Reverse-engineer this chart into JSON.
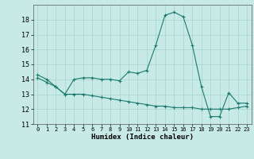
{
  "title": "",
  "xlabel": "Humidex (Indice chaleur)",
  "background_color": "#c8eae6",
  "line_color": "#1a7a6e",
  "grid_color": "#a8d8d0",
  "xlim": [
    -0.5,
    23.5
  ],
  "ylim": [
    11,
    19
  ],
  "yticks": [
    11,
    12,
    13,
    14,
    15,
    16,
    17,
    18
  ],
  "xticks": [
    0,
    1,
    2,
    3,
    4,
    5,
    6,
    7,
    8,
    9,
    10,
    11,
    12,
    13,
    14,
    15,
    16,
    17,
    18,
    19,
    20,
    21,
    22,
    23
  ],
  "line1_x": [
    0,
    1,
    2,
    3,
    4,
    5,
    6,
    7,
    8,
    9,
    10,
    11,
    12,
    13,
    14,
    15,
    16,
    17,
    18,
    19,
    20,
    21,
    22,
    23
  ],
  "line1_y": [
    14.3,
    14.0,
    13.5,
    13.0,
    14.0,
    14.1,
    14.1,
    14.0,
    14.0,
    13.9,
    14.5,
    14.4,
    14.6,
    16.3,
    18.3,
    18.5,
    18.2,
    16.3,
    13.5,
    11.5,
    11.5,
    13.1,
    12.4,
    12.4
  ],
  "line2_x": [
    0,
    1,
    2,
    3,
    4,
    5,
    6,
    7,
    8,
    9,
    10,
    11,
    12,
    13,
    14,
    15,
    16,
    17,
    18,
    19,
    20,
    21,
    22,
    23
  ],
  "line2_y": [
    14.1,
    13.8,
    13.5,
    13.0,
    13.0,
    13.0,
    12.9,
    12.8,
    12.7,
    12.6,
    12.5,
    12.4,
    12.3,
    12.2,
    12.2,
    12.1,
    12.1,
    12.1,
    12.0,
    12.0,
    12.0,
    12.0,
    12.1,
    12.2
  ]
}
